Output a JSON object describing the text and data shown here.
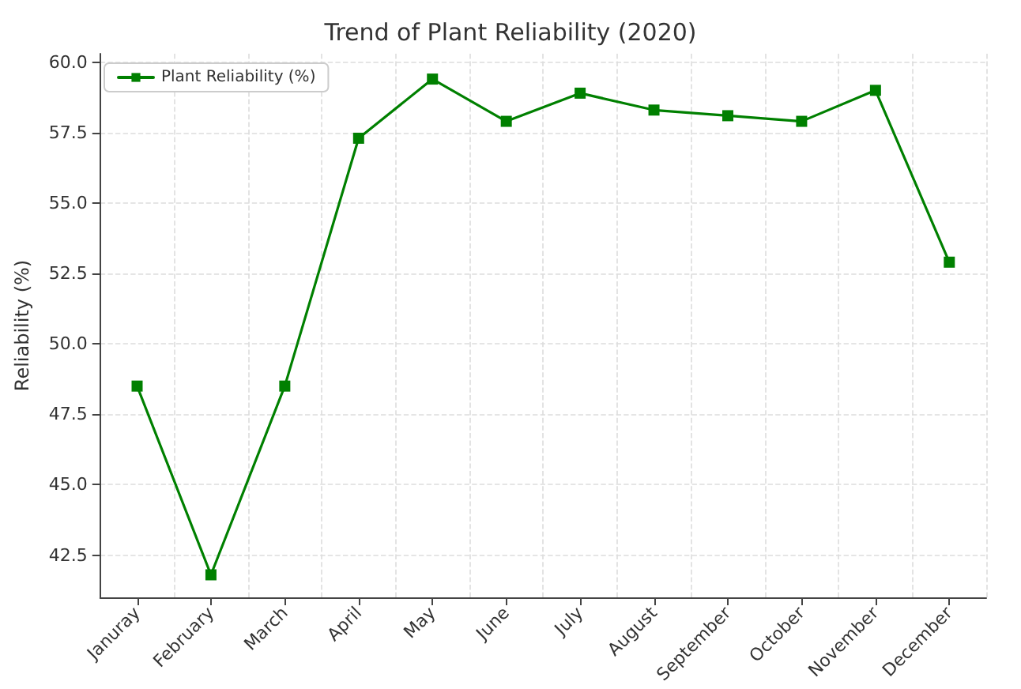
{
  "chart_data": {
    "type": "line",
    "title": "Trend of Plant Reliability (2020)",
    "ylabel": "Reliability (%)",
    "categories": [
      "Januray",
      "February",
      "March",
      "April",
      "May",
      "June",
      "July",
      "August",
      "September",
      "October",
      "November",
      "December"
    ],
    "series": [
      {
        "name": "Plant Reliability (%)",
        "color": "#008000",
        "values": [
          48.5,
          41.8,
          48.5,
          57.3,
          59.4,
          57.9,
          58.9,
          58.3,
          58.1,
          57.9,
          59.0,
          52.9
        ]
      }
    ],
    "ylim": [
      41.0,
      60.3
    ],
    "yticks": [
      {
        "value": 42.5,
        "label": "42.5"
      },
      {
        "value": 45,
        "label": "45.0"
      },
      {
        "value": 47.5,
        "label": "47.5"
      },
      {
        "value": 50,
        "label": "50.0"
      },
      {
        "value": 52.5,
        "label": "52.5"
      },
      {
        "value": 55,
        "label": "55.0"
      },
      {
        "value": 57.5,
        "label": "57.5"
      },
      {
        "value": 60,
        "label": "60.0"
      }
    ],
    "grid": true,
    "legend": "top left",
    "marker": "square",
    "line_style": "solid"
  }
}
